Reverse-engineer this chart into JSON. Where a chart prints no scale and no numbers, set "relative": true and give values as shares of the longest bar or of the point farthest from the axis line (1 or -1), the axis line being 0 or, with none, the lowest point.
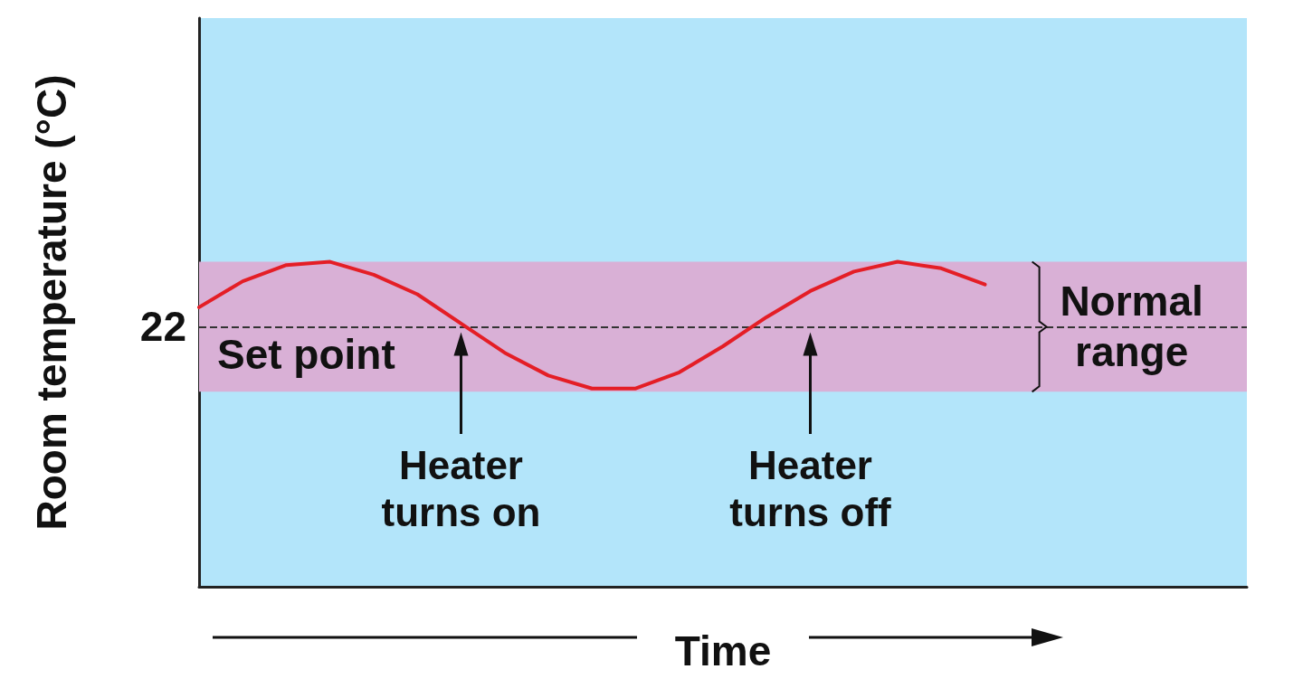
{
  "chart_data": {
    "type": "line",
    "relative": true,
    "xlabel": "Time",
    "ylabel": "Room temperature (°C)",
    "categories": [
      null,
      null,
      null,
      null,
      null,
      null,
      null,
      null,
      null,
      null,
      null,
      null,
      null,
      null,
      null,
      null,
      null,
      null,
      null,
      null,
      null,
      null,
      null,
      null,
      null
    ],
    "series": [
      {
        "color": "#e41e26",
        "values": [
          0.86,
          0.94,
          0.99,
          1.0,
          0.96,
          0.9,
          0.81,
          0.72,
          0.65,
          0.61,
          0.61,
          0.66,
          0.74,
          0.83,
          0.91,
          0.97,
          1.0,
          0.98,
          0.93,
          null,
          null,
          null,
          null,
          null,
          null
        ]
      }
    ],
    "ref_lines": [
      {
        "axis": "y",
        "value": 0.8,
        "label": "Set point",
        "color": "#333333",
        "line_style": "dashed"
      }
    ],
    "bands": [
      {
        "axis": "y",
        "from": 0.6,
        "to": 1.0,
        "label": "Normal\nrange",
        "color": "#d9b0d6"
      }
    ],
    "annotations": [
      "22",
      "Heater\nturns on",
      "Heater\nturns off"
    ],
    "grid": false,
    "marker": "none",
    "line_style": "solid"
  }
}
